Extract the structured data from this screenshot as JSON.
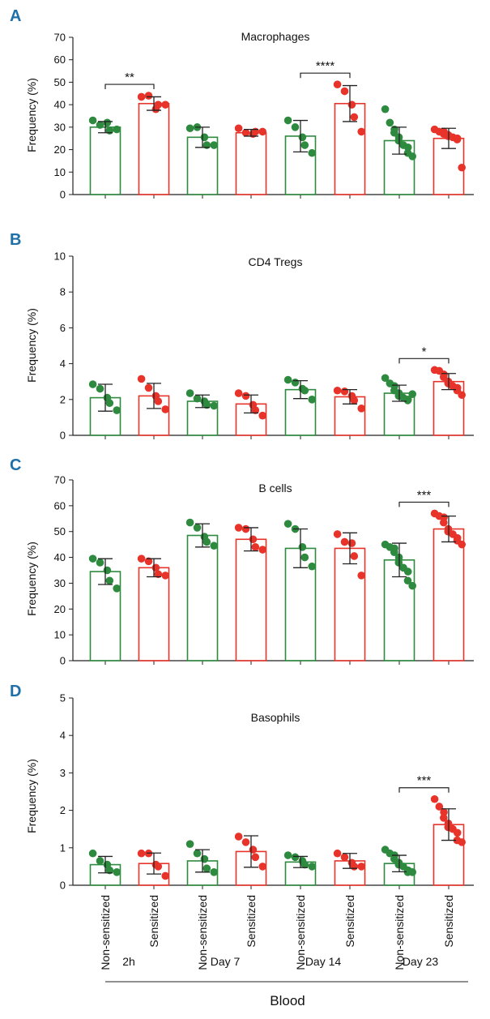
{
  "chart_data": [
    {
      "type": "bar",
      "panel_label": "A",
      "title": "Macrophages",
      "ylabel": "Frequency (%)",
      "ylim": [
        0,
        70
      ],
      "yticks": [
        0,
        10,
        20,
        30,
        40,
        50,
        60,
        70
      ],
      "categories": [
        "Non-sensitized",
        "Sensitized",
        "Non-sensitized",
        "Sensitized",
        "Non-sensitized",
        "Sensitized",
        "Non-sensitized",
        "Sensitized"
      ],
      "means": [
        30,
        40.5,
        25.5,
        27.5,
        26,
        40.5,
        24,
        25
      ],
      "errors": [
        2.5,
        3,
        4.5,
        1.5,
        7,
        8,
        6,
        4.5
      ],
      "points": [
        [
          33,
          31,
          32,
          28.5,
          29
        ],
        [
          43.5,
          44,
          38,
          40,
          40
        ],
        [
          29.5,
          30,
          25.5,
          22,
          22
        ],
        [
          29.5,
          27.5,
          27,
          28,
          28
        ],
        [
          33,
          30,
          25.5,
          22,
          18.5
        ],
        [
          49,
          46,
          40,
          34.5,
          28
        ],
        [
          38,
          32,
          29,
          27.5,
          25.5,
          24,
          22,
          21,
          18.5,
          17
        ],
        [
          29,
          28,
          28,
          27,
          26.5,
          26,
          25.5,
          25,
          24.5,
          12
        ]
      ],
      "significance": [
        {
          "between": [
            0,
            1
          ],
          "label": "**"
        },
        {
          "between": [
            4,
            5
          ],
          "label": "****"
        }
      ]
    },
    {
      "type": "bar",
      "panel_label": "B",
      "title": "CD4 Tregs",
      "ylabel": "Frequency (%)",
      "ylim": [
        0,
        10
      ],
      "yticks": [
        0,
        2,
        4,
        6,
        8,
        10
      ],
      "categories": [
        "Non-sensitized",
        "Sensitized",
        "Non-sensitized",
        "Sensitized",
        "Non-sensitized",
        "Sensitized",
        "Non-sensitized",
        "Sensitized"
      ],
      "means": [
        2.1,
        2.2,
        1.9,
        1.75,
        2.55,
        2.15,
        2.35,
        3.0
      ],
      "errors": [
        0.75,
        0.7,
        0.35,
        0.5,
        0.5,
        0.4,
        0.45,
        0.45
      ],
      "points": [
        [
          2.85,
          2.6,
          2.1,
          1.8,
          1.4
        ],
        [
          3.15,
          2.65,
          2.2,
          1.9,
          1.45
        ],
        [
          2.35,
          2.05,
          1.9,
          1.7,
          1.65
        ],
        [
          2.35,
          2.2,
          1.7,
          1.4,
          1.1
        ],
        [
          3.1,
          2.95,
          2.6,
          2.5,
          2.0
        ],
        [
          2.5,
          2.45,
          2.2,
          1.95,
          1.5
        ],
        [
          3.2,
          2.9,
          2.75,
          2.5,
          2.35,
          2.2,
          2.1,
          2.0,
          1.95,
          2.3
        ],
        [
          3.65,
          3.6,
          3.4,
          3.25,
          3.0,
          2.9,
          2.75,
          2.65,
          2.5,
          2.25
        ]
      ],
      "significance": [
        {
          "between": [
            6,
            7
          ],
          "label": "*"
        }
      ]
    },
    {
      "type": "bar",
      "panel_label": "C",
      "title": "B cells",
      "ylabel": "Frequency (%)",
      "ylim": [
        0,
        70
      ],
      "yticks": [
        0,
        10,
        20,
        30,
        40,
        50,
        60,
        70
      ],
      "categories": [
        "Non-sensitized",
        "Sensitized",
        "Non-sensitized",
        "Sensitized",
        "Non-sensitized",
        "Sensitized",
        "Non-sensitized",
        "Sensitized"
      ],
      "means": [
        34.5,
        36,
        48.5,
        47,
        43.5,
        43.5,
        39,
        51
      ],
      "errors": [
        5,
        3.5,
        4.5,
        4.5,
        7.5,
        6,
        6.5,
        5
      ],
      "points": [
        [
          39.5,
          38,
          35,
          31,
          28
        ],
        [
          39.5,
          38.5,
          36,
          33.5,
          33
        ],
        [
          53.5,
          51.5,
          48,
          46,
          44.5
        ],
        [
          51.5,
          51,
          47,
          44,
          43
        ],
        [
          53,
          51,
          44,
          40,
          36.5
        ],
        [
          49,
          46,
          45.5,
          40.5,
          33
        ],
        [
          45,
          44,
          43.5,
          42,
          40,
          38,
          36,
          34.5,
          31,
          29
        ],
        [
          57,
          56,
          55.5,
          53.5,
          51,
          50,
          49,
          47.5,
          46.5,
          45
        ]
      ],
      "significance": [
        {
          "between": [
            6,
            7
          ],
          "label": "***"
        }
      ]
    },
    {
      "type": "bar",
      "panel_label": "D",
      "title": "Basophils",
      "ylabel": "Frequency (%)",
      "ylim": [
        0,
        5
      ],
      "yticks": [
        0,
        1,
        2,
        3,
        4,
        5
      ],
      "categories": [
        "Non-sensitized",
        "Sensitized",
        "Non-sensitized",
        "Sensitized",
        "Non-sensitized",
        "Sensitized",
        "Non-sensitized",
        "Sensitized"
      ],
      "means": [
        0.55,
        0.58,
        0.65,
        0.9,
        0.62,
        0.65,
        0.58,
        1.62
      ],
      "errors": [
        0.22,
        0.28,
        0.3,
        0.42,
        0.15,
        0.2,
        0.22,
        0.42
      ],
      "points": [
        [
          0.85,
          0.65,
          0.55,
          0.4,
          0.35
        ],
        [
          0.85,
          0.85,
          0.55,
          0.5,
          0.25
        ],
        [
          1.1,
          0.85,
          0.7,
          0.45,
          0.35
        ],
        [
          1.3,
          1.15,
          0.95,
          0.75,
          0.5
        ],
        [
          0.8,
          0.75,
          0.65,
          0.55,
          0.5
        ],
        [
          0.85,
          0.75,
          0.6,
          0.5,
          0.5
        ],
        [
          0.95,
          0.85,
          0.8,
          0.7,
          0.6,
          0.55,
          0.5,
          0.4,
          0.35,
          0.35
        ],
        [
          2.3,
          2.1,
          1.95,
          1.8,
          1.65,
          1.55,
          1.5,
          1.4,
          1.2,
          1.15
        ]
      ],
      "significance": [
        {
          "between": [
            6,
            7
          ],
          "label": "***"
        }
      ]
    }
  ],
  "x_groups": [
    "2h",
    "Day 7",
    "Day 14",
    "Day 23"
  ],
  "x_bottom_label": "Blood",
  "colors": {
    "non_sensitized": "#2e8a3e",
    "sensitized": "#e8332a",
    "panel_label": "#1f6fa8",
    "axis": "#222222"
  }
}
